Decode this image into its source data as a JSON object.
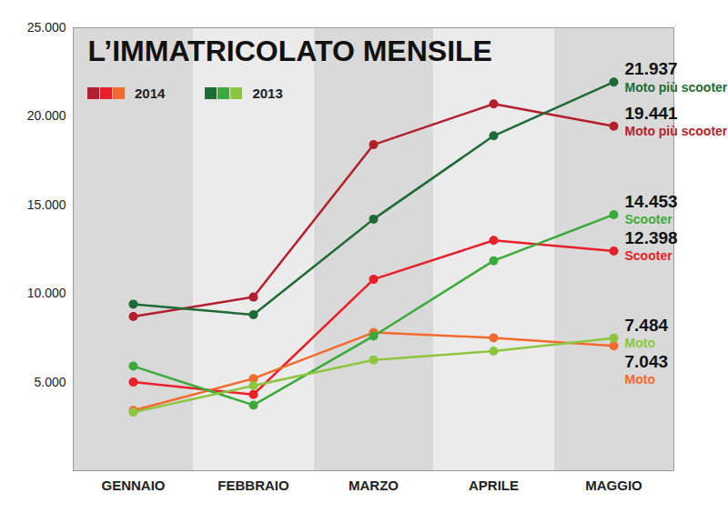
{
  "chart_data": {
    "type": "line",
    "title": "L’IMMATRICOLATO MENSILE",
    "categories": [
      "GENNAIO",
      "FEBBRAIO",
      "MARZO",
      "APRILE",
      "MAGGIO"
    ],
    "series": [
      {
        "name": "Moto più scooter",
        "group": "2014",
        "color": "#b31f2a",
        "values": [
          8700,
          9800,
          18400,
          20700,
          19441
        ],
        "value_labels": [
          null,
          null,
          null,
          null,
          "19.441"
        ]
      },
      {
        "name": "Scooter",
        "group": "2014",
        "color": "#e8202a",
        "values": [
          5000,
          4300,
          10800,
          13000,
          12398
        ],
        "value_labels": [
          null,
          null,
          null,
          null,
          "12.398"
        ]
      },
      {
        "name": "Moto",
        "group": "2014",
        "color": "#f26a2d",
        "values": [
          3400,
          5200,
          7800,
          7500,
          7043
        ],
        "value_labels": [
          null,
          null,
          null,
          null,
          "7.043"
        ]
      },
      {
        "name": "Moto più scooter",
        "group": "2013",
        "color": "#1e6b35",
        "values": [
          9400,
          8800,
          14200,
          18900,
          21937
        ],
        "value_labels": [
          null,
          null,
          null,
          null,
          "21.937"
        ]
      },
      {
        "name": "Scooter",
        "group": "2013",
        "color": "#3aaa3a",
        "values": [
          5900,
          3700,
          7600,
          11850,
          14453
        ],
        "value_labels": [
          null,
          null,
          null,
          null,
          "14.453"
        ]
      },
      {
        "name": "Moto",
        "group": "2013",
        "color": "#8cc63f",
        "values": [
          3300,
          4800,
          6250,
          6750,
          7484
        ],
        "value_labels": [
          null,
          null,
          null,
          null,
          "7.484"
        ]
      }
    ],
    "ylim": [
      0,
      25000
    ],
    "yticks": [
      {
        "value": 5000,
        "label": "5.000"
      },
      {
        "value": 10000,
        "label": "10.000"
      },
      {
        "value": 15000,
        "label": "15.000"
      },
      {
        "value": 20000,
        "label": "20.000"
      },
      {
        "value": 25000,
        "label": "25.000"
      }
    ],
    "grid": false,
    "legend": "top-left",
    "data_labels": true,
    "marker": "circle"
  }
}
